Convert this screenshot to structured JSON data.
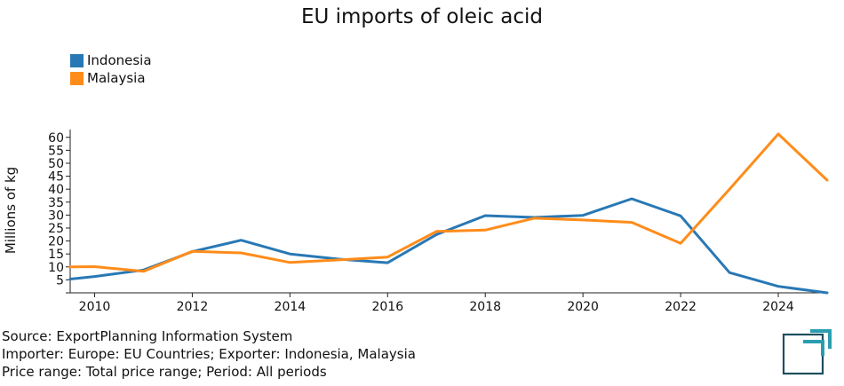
{
  "chart_data": {
    "type": "line",
    "title": "EU imports of oleic acid",
    "ylabel": "Millions of kg",
    "xlabel": "",
    "xlim": [
      2009.5,
      2025
    ],
    "ylim": [
      0,
      63
    ],
    "x_ticks": [
      "2010",
      "2012",
      "2014",
      "2016",
      "2018",
      "2020",
      "2022",
      "2024"
    ],
    "y_ticks": [
      "5",
      "10",
      "15",
      "20",
      "25",
      "30",
      "35",
      "40",
      "45",
      "50",
      "55",
      "60"
    ],
    "legend_position": "top-left",
    "series": [
      {
        "name": "Indonesia",
        "color": "#2878b5",
        "points": [
          [
            2009.5,
            5.3
          ],
          [
            2010,
            6.3
          ],
          [
            2011,
            8.8
          ],
          [
            2012,
            15.9
          ],
          [
            2013,
            20.3
          ],
          [
            2014,
            15.0
          ],
          [
            2015,
            13.0
          ],
          [
            2016,
            11.6
          ],
          [
            2017,
            22.5
          ],
          [
            2018,
            29.8
          ],
          [
            2019,
            29.1
          ],
          [
            2020,
            29.9
          ],
          [
            2021,
            36.3
          ],
          [
            2022,
            29.7
          ],
          [
            2023,
            7.8
          ],
          [
            2024,
            2.5
          ],
          [
            2025,
            0.0
          ]
        ]
      },
      {
        "name": "Malaysia",
        "color": "#ff8c1a",
        "points": [
          [
            2009.5,
            10.0
          ],
          [
            2010,
            10.1
          ],
          [
            2011,
            8.3
          ],
          [
            2012,
            16.0
          ],
          [
            2013,
            15.4
          ],
          [
            2014,
            11.7
          ],
          [
            2015,
            12.7
          ],
          [
            2016,
            13.8
          ],
          [
            2017,
            23.7
          ],
          [
            2018,
            24.2
          ],
          [
            2019,
            28.8
          ],
          [
            2020,
            28.1
          ],
          [
            2021,
            27.2
          ],
          [
            2022,
            19.1
          ],
          [
            2023,
            40.0
          ],
          [
            2024,
            61.3
          ],
          [
            2025,
            43.5
          ]
        ]
      }
    ]
  },
  "footer": {
    "source_line": "Source: ExportPlanning Information System",
    "importer_line": "Importer: Europe: EU Countries; Exporter: Indonesia, Malaysia",
    "period_line": "Price range: Total price range; Period: All periods"
  },
  "logo": {
    "name": "exportplanning-logo-icon",
    "color": "#2a9db0",
    "dark_color": "#1d4f5f"
  }
}
